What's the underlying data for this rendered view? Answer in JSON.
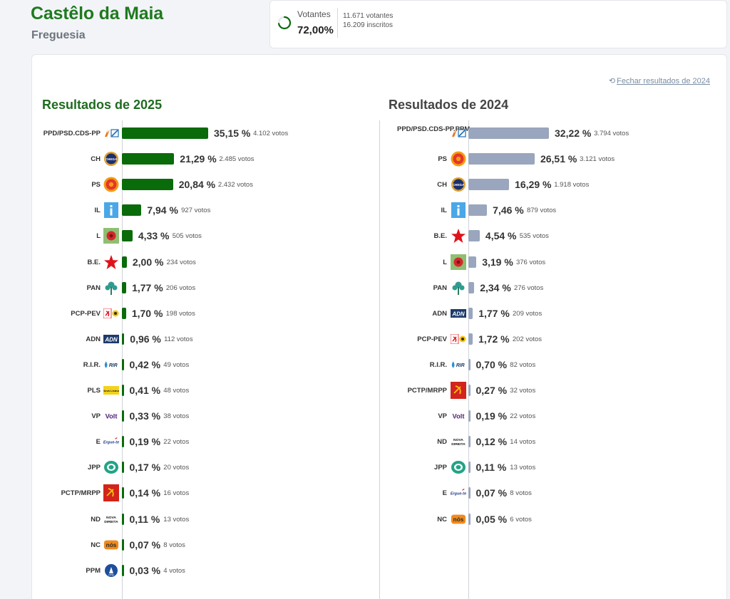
{
  "header": {
    "title": "Castêlo da Maia",
    "subtitle": "Freguesia"
  },
  "turnout": {
    "label": "Votantes",
    "percent": "72,00%",
    "percent_value": 72.0,
    "voters": "11.671 votantes",
    "registered": "16.209 inscritos"
  },
  "actions": {
    "close_label": "Fechar resultados de 2024"
  },
  "results_2025": {
    "title": "Resultados de 2025",
    "color": "#0a6b0a",
    "parties": [
      {
        "name": "PPD/PSD.CDS-PP",
        "pct": "35,15 %",
        "value": 35.15,
        "votes": "4.102 votos",
        "logo": "ad-logo"
      },
      {
        "name": "CH",
        "pct": "21,29 %",
        "value": 21.29,
        "votes": "2.485 votos",
        "logo": "chega-logo"
      },
      {
        "name": "PS",
        "pct": "20,84 %",
        "value": 20.84,
        "votes": "2.432 votos",
        "logo": "ps-logo"
      },
      {
        "name": "IL",
        "pct": "7,94 %",
        "value": 7.94,
        "votes": "927 votos",
        "logo": "il-logo"
      },
      {
        "name": "L",
        "pct": "4,33 %",
        "value": 4.33,
        "votes": "505 votos",
        "logo": "livre-logo"
      },
      {
        "name": "B.E.",
        "pct": "2,00 %",
        "value": 2.0,
        "votes": "234 votos",
        "logo": "be-logo"
      },
      {
        "name": "PAN",
        "pct": "1,77 %",
        "value": 1.77,
        "votes": "206 votos",
        "logo": "pan-logo"
      },
      {
        "name": "PCP-PEV",
        "pct": "1,70 %",
        "value": 1.7,
        "votes": "198 votos",
        "logo": "cdu-logo"
      },
      {
        "name": "ADN",
        "pct": "0,96 %",
        "value": 0.96,
        "votes": "112 votos",
        "logo": "adn-logo"
      },
      {
        "name": "R.I.R.",
        "pct": "0,42 %",
        "value": 0.42,
        "votes": "49 votos",
        "logo": "rir-logo"
      },
      {
        "name": "PLS",
        "pct": "0,41 %",
        "value": 0.41,
        "votes": "48 votos",
        "logo": "pls-logo"
      },
      {
        "name": "VP",
        "pct": "0,33 %",
        "value": 0.33,
        "votes": "38 votos",
        "logo": "volt-logo"
      },
      {
        "name": "E",
        "pct": "0,19 %",
        "value": 0.19,
        "votes": "22 votos",
        "logo": "ergue-te-logo"
      },
      {
        "name": "JPP",
        "pct": "0,17 %",
        "value": 0.17,
        "votes": "20 votos",
        "logo": "jpp-logo"
      },
      {
        "name": "PCTP/MRPP",
        "pct": "0,14 %",
        "value": 0.14,
        "votes": "16 votos",
        "logo": "mrpp-logo"
      },
      {
        "name": "ND",
        "pct": "0,11 %",
        "value": 0.11,
        "votes": "13 votos",
        "logo": "nd-logo"
      },
      {
        "name": "NC",
        "pct": "0,07 %",
        "value": 0.07,
        "votes": "8 votos",
        "logo": "nc-logo"
      },
      {
        "name": "PPM",
        "pct": "0,03 %",
        "value": 0.03,
        "votes": "4 votos",
        "logo": "ppm-logo"
      }
    ]
  },
  "results_2024": {
    "title": "Resultados de 2024",
    "color": "#9aa6bd",
    "parties": [
      {
        "name": "PPD/PSD.CDS-PP.PPM",
        "pct": "32,22 %",
        "value": 32.22,
        "votes": "3.794 votos",
        "logo": "ad-logo"
      },
      {
        "name": "PS",
        "pct": "26,51 %",
        "value": 26.51,
        "votes": "3.121 votos",
        "logo": "ps-logo"
      },
      {
        "name": "CH",
        "pct": "16,29 %",
        "value": 16.29,
        "votes": "1.918 votos",
        "logo": "chega-logo"
      },
      {
        "name": "IL",
        "pct": "7,46 %",
        "value": 7.46,
        "votes": "879 votos",
        "logo": "il-logo"
      },
      {
        "name": "B.E.",
        "pct": "4,54 %",
        "value": 4.54,
        "votes": "535 votos",
        "logo": "be-logo"
      },
      {
        "name": "L",
        "pct": "3,19 %",
        "value": 3.19,
        "votes": "376 votos",
        "logo": "livre-logo"
      },
      {
        "name": "PAN",
        "pct": "2,34 %",
        "value": 2.34,
        "votes": "276 votos",
        "logo": "pan-logo"
      },
      {
        "name": "ADN",
        "pct": "1,77 %",
        "value": 1.77,
        "votes": "209 votos",
        "logo": "adn-logo"
      },
      {
        "name": "PCP-PEV",
        "pct": "1,72 %",
        "value": 1.72,
        "votes": "202 votos",
        "logo": "cdu-logo"
      },
      {
        "name": "R.I.R.",
        "pct": "0,70 %",
        "value": 0.7,
        "votes": "82 votos",
        "logo": "rir-logo"
      },
      {
        "name": "PCTP/MRPP",
        "pct": "0,27 %",
        "value": 0.27,
        "votes": "32 votos",
        "logo": "mrpp-logo"
      },
      {
        "name": "VP",
        "pct": "0,19 %",
        "value": 0.19,
        "votes": "22 votos",
        "logo": "volt-logo"
      },
      {
        "name": "ND",
        "pct": "0,12 %",
        "value": 0.12,
        "votes": "14 votos",
        "logo": "nd-logo"
      },
      {
        "name": "JPP",
        "pct": "0,11 %",
        "value": 0.11,
        "votes": "13 votos",
        "logo": "jpp-logo"
      },
      {
        "name": "E",
        "pct": "0,07 %",
        "value": 0.07,
        "votes": "8 votos",
        "logo": "ergue-te-logo"
      },
      {
        "name": "NC",
        "pct": "0,05 %",
        "value": 0.05,
        "votes": "6 votos",
        "logo": "nc-logo"
      }
    ]
  },
  "logo_text": {
    "chega": "CHEGA",
    "adn": "ADN",
    "rir": "RIR",
    "pls": "Nova Lisboa",
    "volt": "Volt",
    "ergue": "Ergue-te",
    "nd1": "NOVA",
    "nd2": "DIREITA",
    "nc": "nós",
    "ppm": "PPM"
  }
}
